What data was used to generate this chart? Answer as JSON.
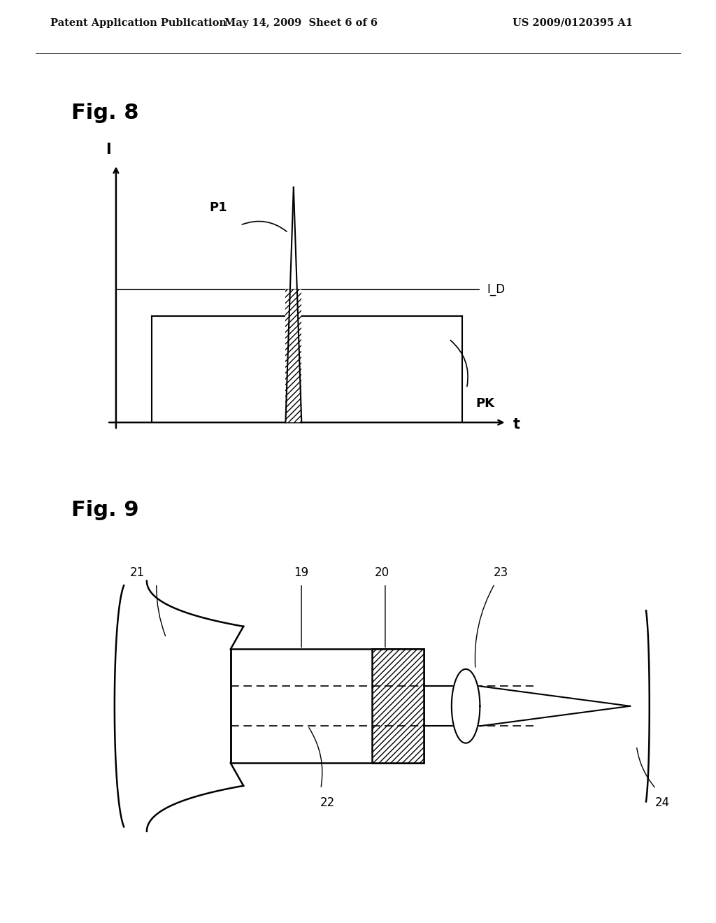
{
  "background_color": "#ffffff",
  "header_left": "Patent Application Publication",
  "header_center": "May 14, 2009  Sheet 6 of 6",
  "header_right": "US 2009/0120395 A1",
  "header_fontsize": 11,
  "fig8_label": "Fig. 8",
  "fig9_label": "Fig. 9",
  "fig8_xlabel": "t",
  "fig8_ylabel": "I",
  "fig8_id_label": "I_D",
  "fig8_p1_label": "P1",
  "fig8_pk_label": "PK"
}
